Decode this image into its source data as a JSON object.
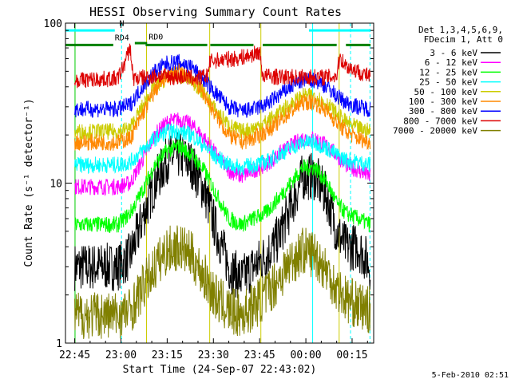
{
  "chart_data": {
    "type": "line",
    "title": "HESSI Observing Summary Count Rates",
    "xlabel": "Start Time (24-Sep-07 22:43:02)",
    "ylabel": "Count Rate (s⁻¹ detector⁻¹)",
    "yscale": "log",
    "ylim": [
      1,
      100
    ],
    "xlim_minutes": [
      -3,
      97
    ],
    "x_ticks": [
      {
        "min": 0,
        "label": "22:45"
      },
      {
        "min": 15,
        "label": "23:00"
      },
      {
        "min": 30,
        "label": "23:15"
      },
      {
        "min": 45,
        "label": "23:30"
      },
      {
        "min": 60,
        "label": "23:45"
      },
      {
        "min": 75,
        "label": "00:00"
      },
      {
        "min": 90,
        "label": "00:15"
      }
    ],
    "y_ticks": [
      {
        "value": 1,
        "label": "1"
      },
      {
        "value": 10,
        "label": "10"
      },
      {
        "value": 100,
        "label": "100"
      }
    ],
    "legend": {
      "position": "top-right",
      "header": [
        "Det 1,3,4,5,6,9,",
        "FDecim 1, Att 0"
      ]
    },
    "series": [
      {
        "name": "3 - 6 keV",
        "color": "#000000",
        "x": [
          0,
          14,
          18,
          22,
          26,
          30,
          34,
          38,
          42,
          46,
          50,
          54,
          58,
          62,
          66,
          70,
          74,
          78,
          82,
          85,
          88,
          92,
          96
        ],
        "y": [
          3,
          3,
          3.5,
          6,
          10,
          14,
          15,
          13,
          9,
          5,
          3,
          2.5,
          3,
          3.5,
          4.5,
          7,
          11,
          11,
          8,
          5,
          4,
          4,
          3
        ]
      },
      {
        "name": "6 - 12 keV",
        "color": "#ff00ff",
        "x": [
          0,
          14,
          18,
          22,
          26,
          30,
          34,
          38,
          42,
          46,
          50,
          54,
          58,
          62,
          66,
          70,
          74,
          78,
          82,
          85,
          88,
          92,
          96
        ],
        "y": [
          9.5,
          9.5,
          10,
          14,
          20,
          24,
          25,
          23,
          19,
          15,
          12,
          11,
          12,
          13,
          15,
          17,
          19,
          19,
          17,
          15,
          13,
          12,
          11
        ]
      },
      {
        "name": "12 - 25 keV",
        "color": "#00ff00",
        "x": [
          0,
          14,
          18,
          22,
          26,
          30,
          34,
          38,
          42,
          46,
          50,
          54,
          58,
          62,
          66,
          70,
          74,
          78,
          82,
          85,
          88,
          92,
          96
        ],
        "y": [
          5.5,
          5.5,
          6.5,
          9,
          13,
          16,
          17,
          15,
          12,
          8.5,
          6,
          5.5,
          6,
          6.5,
          8,
          10,
          12.5,
          12.5,
          10,
          7.5,
          6.5,
          6,
          5.5
        ]
      },
      {
        "name": "25 - 50 keV",
        "color": "#00ffff",
        "x": [
          0,
          14,
          18,
          22,
          26,
          30,
          34,
          38,
          42,
          46,
          50,
          54,
          58,
          62,
          66,
          70,
          74,
          78,
          82,
          85,
          88,
          92,
          96
        ],
        "y": [
          13,
          13,
          13.5,
          16,
          19,
          21,
          21,
          20,
          17,
          14.5,
          13,
          12.5,
          13,
          13.5,
          15,
          16.5,
          18,
          18,
          16.5,
          15,
          14,
          13.5,
          13
        ]
      },
      {
        "name": "50 - 100 keV",
        "color": "#cccc00",
        "x": [
          0,
          14,
          18,
          22,
          26,
          30,
          34,
          38,
          42,
          46,
          50,
          54,
          58,
          62,
          66,
          70,
          74,
          78,
          82,
          85,
          88,
          92,
          96
        ],
        "y": [
          21,
          21,
          22,
          30,
          40,
          46,
          47,
          44,
          36,
          28,
          23,
          21,
          22,
          24,
          27,
          31,
          35,
          35,
          31,
          27,
          24,
          22,
          21
        ]
      },
      {
        "name": "100 - 300 keV",
        "color": "#ff8800",
        "x": [
          0,
          14,
          18,
          22,
          26,
          30,
          34,
          38,
          42,
          46,
          50,
          54,
          58,
          62,
          66,
          70,
          74,
          78,
          82,
          85,
          88,
          92,
          96
        ],
        "y": [
          18,
          18,
          19,
          27,
          38,
          47,
          50,
          46,
          36,
          26,
          20,
          18,
          19,
          21,
          24,
          28,
          32,
          32,
          28,
          24,
          21,
          19,
          18
        ]
      },
      {
        "name": "300 - 800 keV",
        "color": "#0000ff",
        "x": [
          0,
          14,
          18,
          22,
          26,
          30,
          34,
          38,
          42,
          46,
          50,
          54,
          58,
          62,
          66,
          70,
          74,
          78,
          82,
          85,
          88,
          92,
          96
        ],
        "y": [
          29,
          29,
          31,
          40,
          50,
          56,
          57,
          53,
          44,
          36,
          30,
          28,
          29,
          31,
          35,
          40,
          44,
          44,
          40,
          35,
          32,
          30,
          29
        ]
      },
      {
        "name": "800 - 7000 keV",
        "color": "#dd0000",
        "x": [
          0,
          14,
          16,
          18,
          19,
          24,
          28,
          32,
          36,
          40,
          43,
          44,
          48,
          52,
          56,
          58,
          60,
          61,
          66,
          70,
          74,
          78,
          82,
          85,
          86,
          88,
          92,
          96
        ],
        "y": [
          44,
          45,
          55,
          70,
          45,
          46,
          47,
          46,
          46,
          45,
          47,
          58,
          59,
          60,
          62,
          64,
          66,
          47,
          46,
          46,
          46,
          46,
          46,
          47,
          62,
          54,
          50,
          46
        ]
      },
      {
        "name": "7000 - 20000 keV",
        "color": "#808000",
        "x": [
          0,
          14,
          18,
          22,
          26,
          30,
          34,
          38,
          42,
          46,
          50,
          54,
          58,
          62,
          66,
          70,
          74,
          78,
          82,
          85,
          88,
          92,
          96
        ],
        "y": [
          1.5,
          1.5,
          1.6,
          2.2,
          3,
          3.8,
          4,
          3.5,
          2.6,
          1.9,
          1.6,
          1.5,
          1.7,
          2,
          2.5,
          3.2,
          3.8,
          3.6,
          2.8,
          2.2,
          1.9,
          1.7,
          1.6
        ]
      }
    ],
    "annotations": [
      {
        "text": "N",
        "color": "#00ffff"
      },
      {
        "text": "RD4",
        "color": "#008000"
      },
      {
        "text": "RD0",
        "color": "#008000"
      }
    ],
    "status_bars": [
      {
        "label": "N",
        "color": "#00ffff",
        "value": 90,
        "segments": [
          [
            -3,
            13
          ],
          [
            76,
            96
          ]
        ]
      },
      {
        "label": "RD0",
        "color": "#008000",
        "value": 73,
        "segments": [
          [
            -3,
            12.5
          ],
          [
            23,
            43
          ],
          [
            44,
            58
          ],
          [
            61,
            85
          ],
          [
            88,
            96
          ]
        ]
      },
      {
        "label": "RD4",
        "color": "#008000",
        "value": 75,
        "segments": [
          [
            19.5,
            23.5
          ]
        ]
      }
    ],
    "vertical_markers": [
      {
        "x": 15.2,
        "color": "#00ffff",
        "dashed": true
      },
      {
        "x": 77.2,
        "color": "#00ffff",
        "dashed": false
      },
      {
        "x": 89.5,
        "color": "#00ffff",
        "dashed": true
      },
      {
        "x": 95.8,
        "color": "#00ffff",
        "dashed": true
      },
      {
        "x": 0.1,
        "color": "#00cc00",
        "dashed": false
      },
      {
        "x": 23.3,
        "color": "#cccc00",
        "dashed": false
      },
      {
        "x": 43.8,
        "color": "#cccc00",
        "dashed": false
      },
      {
        "x": 60.4,
        "color": "#cccc00",
        "dashed": false
      },
      {
        "x": 85.8,
        "color": "#cccc00",
        "dashed": false
      }
    ],
    "grid": false
  },
  "footer": {
    "timestamp": "5-Feb-2010 02:51"
  }
}
